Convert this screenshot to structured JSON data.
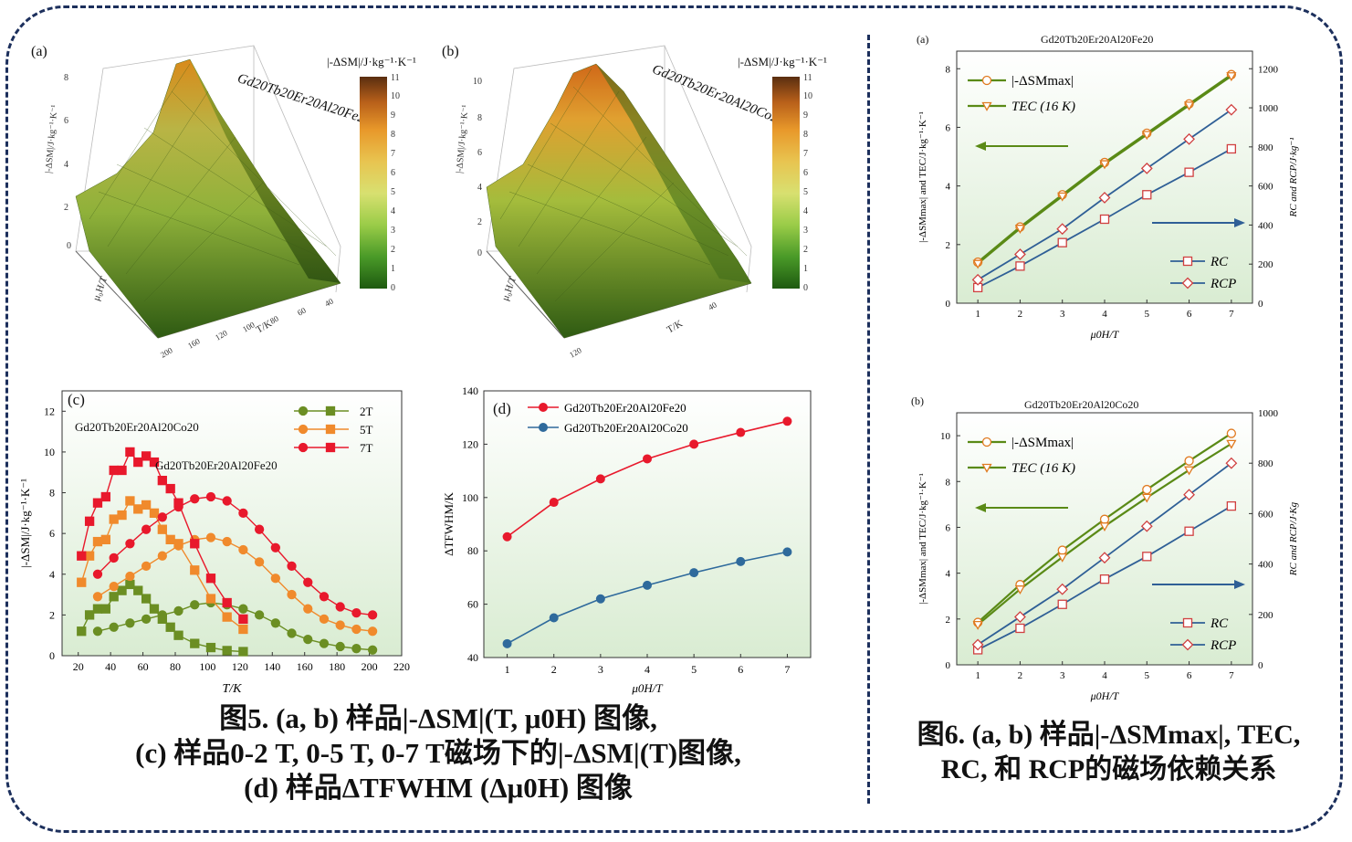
{
  "figure5": {
    "panel_a": {
      "tag": "(a)",
      "material": "Gd20Tb20Er20Al20Fe20",
      "colorbar_label": "|-ΔSM|/J·kg⁻¹·K⁻¹"
    },
    "panel_b": {
      "tag": "(b)",
      "material": "Gd20Tb20Er20Al20Co20",
      "colorbar_label": "|-ΔSM|/J·kg⁻¹·K⁻¹"
    },
    "panel_c": {
      "tag": "(c)",
      "label_co": "Gd20Tb20Er20Al20Co20",
      "label_fe": "Gd20Tb20Er20Al20Fe20"
    },
    "panel_d": {
      "tag": "(d)"
    },
    "caption_lines": [
      "图5. (a, b) 样品|-ΔSM|(T, μ0H) 图像,",
      "(c) 样品0-2 T, 0-5 T, 0-7 T磁场下的|-ΔSM|(T)图像,",
      "(d) 样品ΔTFWHM (Δμ0H) 图像"
    ]
  },
  "figure6": {
    "panel_a": {
      "tag": "(a)",
      "title": "Gd20Tb20Er20Al20Fe20"
    },
    "panel_b": {
      "tag": "(b)",
      "title": "Gd20Tb20Er20Al20Co20"
    },
    "caption_lines": [
      "图6. (a, b) 样品|-ΔSMmax|, TEC,",
      "RC, 和 RCP的磁场依赖关系"
    ]
  },
  "chart_data": [
    {
      "id": "fig5a",
      "type": "surface",
      "xlabel": "T/K",
      "ylabel": "μ0H/T",
      "zlabel": "|-ΔSM|/J·kg⁻¹·K⁻¹",
      "colorbar": {
        "min": 0,
        "max": 11,
        "ticks": [
          0,
          1,
          2,
          3,
          4,
          5,
          6,
          7,
          8,
          9,
          10,
          11
        ]
      },
      "zticks": [
        0,
        2,
        4,
        6,
        8
      ]
    },
    {
      "id": "fig5b",
      "type": "surface",
      "xlabel": "T/K",
      "ylabel": "μ0H/T",
      "zlabel": "|-ΔSM|/J·kg⁻¹·K⁻¹",
      "colorbar": {
        "min": 0,
        "max": 11,
        "ticks": [
          0,
          1,
          2,
          3,
          4,
          5,
          6,
          7,
          8,
          9,
          10,
          11
        ]
      },
      "zticks": [
        0,
        2,
        4,
        6,
        8,
        10
      ]
    },
    {
      "id": "fig5c",
      "type": "line",
      "xlabel": "T/K",
      "ylabel": "|-ΔSM|/J·kg⁻¹·K⁻¹",
      "xlim": [
        10,
        220
      ],
      "ylim": [
        0,
        13
      ],
      "xticks": [
        20,
        40,
        60,
        80,
        100,
        120,
        140,
        160,
        180,
        200,
        220
      ],
      "yticks": [
        0,
        2,
        4,
        6,
        8,
        10,
        12
      ],
      "series": [
        {
          "name": "2T",
          "marker": "circle",
          "color": "#6b8e23",
          "x": [
            32,
            42,
            52,
            62,
            72,
            82,
            92,
            102,
            112,
            122,
            132,
            142,
            152,
            162,
            172,
            182,
            192,
            202
          ],
          "y": [
            1.2,
            1.4,
            1.6,
            1.8,
            2.0,
            2.2,
            2.5,
            2.6,
            2.5,
            2.3,
            2.0,
            1.6,
            1.1,
            0.8,
            0.6,
            0.45,
            0.35,
            0.28
          ]
        },
        {
          "name": "2T",
          "marker": "square",
          "color": "#6b8e23",
          "x": [
            22,
            27,
            32,
            37,
            42,
            47,
            52,
            57,
            62,
            67,
            72,
            77,
            82,
            92,
            102,
            112,
            122
          ],
          "y": [
            1.2,
            2.0,
            2.3,
            2.3,
            2.9,
            3.2,
            3.5,
            3.2,
            2.8,
            2.3,
            1.8,
            1.4,
            1.0,
            0.6,
            0.4,
            0.25,
            0.2
          ]
        },
        {
          "name": "5T",
          "marker": "circle",
          "color": "#f08a2c",
          "x": [
            32,
            42,
            52,
            62,
            72,
            82,
            92,
            102,
            112,
            122,
            132,
            142,
            152,
            162,
            172,
            182,
            192,
            202
          ],
          "y": [
            2.9,
            3.4,
            3.9,
            4.4,
            4.9,
            5.4,
            5.7,
            5.8,
            5.6,
            5.2,
            4.6,
            3.8,
            3.0,
            2.3,
            1.8,
            1.5,
            1.3,
            1.2
          ]
        },
        {
          "name": "5T",
          "marker": "square",
          "color": "#f08a2c",
          "x": [
            22,
            27,
            32,
            37,
            42,
            47,
            52,
            57,
            62,
            67,
            72,
            77,
            82,
            92,
            102,
            112,
            122
          ],
          "y": [
            3.6,
            4.9,
            5.6,
            5.7,
            6.7,
            6.9,
            7.6,
            7.2,
            7.4,
            7.0,
            6.2,
            5.7,
            5.5,
            4.2,
            2.8,
            1.9,
            1.3
          ]
        },
        {
          "name": "7T",
          "marker": "circle",
          "color": "#e8192c",
          "x": [
            32,
            42,
            52,
            62,
            72,
            82,
            92,
            102,
            112,
            122,
            132,
            142,
            152,
            162,
            172,
            182,
            192,
            202
          ],
          "y": [
            4.0,
            4.8,
            5.5,
            6.2,
            6.8,
            7.3,
            7.7,
            7.8,
            7.6,
            7.0,
            6.2,
            5.3,
            4.4,
            3.6,
            2.9,
            2.4,
            2.1,
            2.0
          ]
        },
        {
          "name": "7T",
          "marker": "square",
          "color": "#e8192c",
          "x": [
            22,
            27,
            32,
            37,
            42,
            47,
            52,
            57,
            62,
            67,
            72,
            77,
            82,
            92,
            102,
            112,
            122
          ],
          "y": [
            4.9,
            6.6,
            7.5,
            7.8,
            9.1,
            9.1,
            10.0,
            9.5,
            9.8,
            9.5,
            8.6,
            8.2,
            7.5,
            5.5,
            3.8,
            2.6,
            1.8
          ]
        }
      ],
      "legend": [
        "2T",
        "5T",
        "7T"
      ]
    },
    {
      "id": "fig5d",
      "type": "line",
      "xlabel": "μ0H/T",
      "ylabel": "ΔTFWHM/K",
      "xlim": [
        0.5,
        7.5
      ],
      "ylim": [
        40,
        140
      ],
      "xticks": [
        1,
        2,
        3,
        4,
        5,
        6,
        7
      ],
      "yticks": [
        40,
        60,
        80,
        100,
        120,
        140
      ],
      "categories": [
        1,
        2,
        3,
        4,
        5,
        6,
        7
      ],
      "series": [
        {
          "name": "Gd20Tb20Er20Al20Fe20",
          "color": "#e8192c",
          "values": [
            85.3,
            98.2,
            107.0,
            114.5,
            120.0,
            124.4,
            128.6
          ]
        },
        {
          "name": "Gd20Tb20Er20Al20Co20",
          "color": "#2f6a9c",
          "values": [
            45.2,
            54.9,
            62.0,
            67.1,
            71.8,
            76.0,
            79.6
          ]
        }
      ]
    },
    {
      "id": "fig6a",
      "type": "line",
      "title": "Gd20Tb20Er20Al20Fe20",
      "xlabel": "μ0H/T",
      "ylabel_left": "|-ΔSMmax| and TEC/J·kg⁻¹·K⁻¹",
      "ylabel_right": "RC and RCP/J·kg⁻¹",
      "xlim": [
        0.5,
        7.5
      ],
      "ylim_left": [
        0,
        8.6
      ],
      "ylim_right": [
        0,
        1290
      ],
      "xticks": [
        1,
        2,
        3,
        4,
        5,
        6,
        7
      ],
      "yticks_left": [
        0,
        2,
        4,
        6,
        8
      ],
      "yticks_right": [
        0,
        200,
        400,
        600,
        800,
        1000,
        1200
      ],
      "categories": [
        1,
        2,
        3,
        4,
        5,
        6,
        7
      ],
      "series": [
        {
          "name": "|-ΔSMmax|",
          "axis": "left",
          "marker": "circle",
          "color": "#5a8a16",
          "values": [
            1.4,
            2.6,
            3.7,
            4.8,
            5.8,
            6.8,
            7.8
          ]
        },
        {
          "name": "TEC (16 K)",
          "axis": "left",
          "marker": "triangle-down",
          "color": "#5a8a16",
          "values": [
            1.35,
            2.55,
            3.65,
            4.75,
            5.75,
            6.75,
            7.75
          ]
        },
        {
          "name": "RC",
          "axis": "right",
          "marker": "square",
          "color": "#2f5f96",
          "values": [
            80,
            190,
            310,
            430,
            555,
            670,
            790
          ]
        },
        {
          "name": "RCP",
          "axis": "right",
          "marker": "diamond",
          "color": "#2f5f96",
          "values": [
            120,
            250,
            380,
            540,
            690,
            840,
            990
          ]
        }
      ]
    },
    {
      "id": "fig6b",
      "type": "line",
      "title": "Gd20Tb20Er20Al20Co20",
      "xlabel": "μ0H/T",
      "ylabel_left": "|-ΔSMmax| and TEC/J·kg⁻¹·K⁻¹",
      "ylabel_right": "RC and RCP/J·Kg",
      "xlim": [
        0.5,
        7.5
      ],
      "ylim_left": [
        0,
        11
      ],
      "ylim_right": [
        0,
        1000
      ],
      "xticks": [
        1,
        2,
        3,
        4,
        5,
        6,
        7
      ],
      "yticks_left": [
        0,
        2,
        4,
        6,
        8,
        10
      ],
      "yticks_right": [
        0,
        200,
        400,
        600,
        800,
        1000
      ],
      "categories": [
        1,
        2,
        3,
        4,
        5,
        6,
        7
      ],
      "series": [
        {
          "name": "|-ΔSMmax|",
          "axis": "left",
          "marker": "circle",
          "color": "#5a8a16",
          "values": [
            1.85,
            3.5,
            5.0,
            6.35,
            7.65,
            8.9,
            10.1
          ]
        },
        {
          "name": "TEC (16 K)",
          "axis": "left",
          "marker": "triangle-down",
          "color": "#5a8a16",
          "values": [
            1.75,
            3.3,
            4.7,
            6.05,
            7.3,
            8.5,
            9.65
          ]
        },
        {
          "name": "RC",
          "axis": "right",
          "marker": "square",
          "color": "#2f5f96",
          "values": [
            60,
            145,
            240,
            340,
            430,
            530,
            630
          ]
        },
        {
          "name": "RCP",
          "axis": "right",
          "marker": "diamond",
          "color": "#2f5f96",
          "values": [
            80,
            190,
            300,
            425,
            550,
            675,
            800
          ]
        }
      ]
    }
  ]
}
